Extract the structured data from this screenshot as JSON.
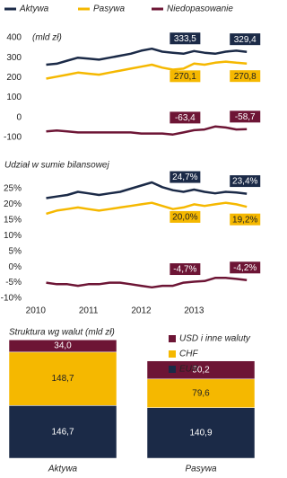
{
  "chart_data": [
    {
      "type": "line",
      "legend": "top",
      "ylabel": "(mld zł)",
      "x": [
        2010.2,
        2010.4,
        2010.6,
        2010.8,
        2011.0,
        2011.2,
        2011.4,
        2011.6,
        2011.8,
        2012.0,
        2012.2,
        2012.4,
        2012.6,
        2012.8,
        2013.0,
        2013.2,
        2013.4,
        2013.6,
        2013.8,
        2014.0
      ],
      "xlim": [
        2009.8,
        2014.2
      ],
      "ylim": [
        -100,
        400
      ],
      "yticks": [
        -100,
        0,
        100,
        200,
        300,
        400
      ],
      "series": [
        {
          "name": "Aktywa",
          "color": "#1b2a47",
          "values": [
            265,
            270,
            285,
            300,
            295,
            290,
            300,
            310,
            320,
            335,
            345,
            330,
            325,
            320,
            333.5,
            325,
            320,
            330,
            335,
            329.4
          ],
          "value_labels": [
            null,
            null,
            null,
            null,
            null,
            null,
            null,
            null,
            null,
            null,
            null,
            null,
            null,
            null,
            "333,5",
            null,
            null,
            null,
            null,
            "329,4"
          ]
        },
        {
          "name": "Pasywa",
          "color": "#f5b800",
          "values": [
            195,
            205,
            215,
            225,
            220,
            215,
            225,
            235,
            245,
            255,
            265,
            250,
            240,
            245,
            270.1,
            265,
            275,
            280,
            275,
            270.8
          ],
          "value_labels": [
            null,
            null,
            null,
            null,
            null,
            null,
            null,
            null,
            null,
            null,
            null,
            null,
            null,
            null,
            "270,1",
            null,
            null,
            null,
            null,
            "270,8"
          ]
        },
        {
          "name": "Niedopasowanie",
          "color": "#6d1535",
          "values": [
            -70,
            -65,
            -70,
            -75,
            -75,
            -75,
            -75,
            -75,
            -75,
            -80,
            -80,
            -80,
            -85,
            -75,
            -63.4,
            -60,
            -45,
            -50,
            -60,
            -58.7
          ],
          "value_labels": [
            null,
            null,
            null,
            null,
            null,
            null,
            null,
            null,
            null,
            null,
            null,
            null,
            null,
            null,
            "-63,4",
            null,
            null,
            null,
            null,
            "-58,7"
          ]
        }
      ]
    },
    {
      "type": "line",
      "title": "Udział w sumie bilansowej",
      "x": [
        2010.2,
        2010.4,
        2010.6,
        2010.8,
        2011.0,
        2011.2,
        2011.4,
        2011.6,
        2011.8,
        2012.0,
        2012.2,
        2012.4,
        2012.6,
        2012.8,
        2013.0,
        2013.2,
        2013.4,
        2013.6,
        2013.8,
        2014.0
      ],
      "xlim": [
        2009.8,
        2014.2
      ],
      "xticks": [
        2010,
        2011,
        2012,
        2013
      ],
      "ylim": [
        -10,
        25
      ],
      "yticks": [
        {
          "value": -10,
          "label": "-10%"
        },
        {
          "value": -5,
          "label": "-5%"
        },
        {
          "value": 0,
          "label": "0%"
        },
        {
          "value": 5,
          "label": "5%"
        },
        {
          "value": 10,
          "label": "10%"
        },
        {
          "value": 15,
          "label": "15%"
        },
        {
          "value": 20,
          "label": "20%"
        },
        {
          "value": 25,
          "label": "25%"
        }
      ],
      "series": [
        {
          "color": "#1b2a47",
          "values": [
            22,
            22.5,
            23,
            24,
            23.5,
            23,
            23.5,
            24,
            25,
            26,
            27,
            25.5,
            24.5,
            24,
            24.7,
            24,
            23.5,
            24,
            23.8,
            23.4
          ],
          "value_labels": [
            null,
            null,
            null,
            null,
            null,
            null,
            null,
            null,
            null,
            null,
            null,
            null,
            null,
            null,
            "24,7%",
            null,
            null,
            null,
            null,
            "23,4%"
          ]
        },
        {
          "color": "#f5b800",
          "values": [
            17,
            18,
            18.5,
            19,
            18.5,
            18,
            18.5,
            19,
            19.5,
            20,
            20.5,
            19.5,
            18.5,
            19,
            20.0,
            19.5,
            20,
            20.5,
            20,
            19.2
          ],
          "value_labels": [
            null,
            null,
            null,
            null,
            null,
            null,
            null,
            null,
            null,
            null,
            null,
            null,
            null,
            null,
            "20,0%",
            null,
            null,
            null,
            null,
            "19,2%"
          ]
        },
        {
          "color": "#6d1535",
          "values": [
            -5,
            -5.5,
            -5.5,
            -6,
            -5.5,
            -5.5,
            -5,
            -5,
            -5.5,
            -6,
            -6.5,
            -6,
            -6,
            -5,
            -4.7,
            -4.5,
            -3.5,
            -3.5,
            -3.8,
            -4.2
          ],
          "value_labels": [
            null,
            null,
            null,
            null,
            null,
            null,
            null,
            null,
            null,
            null,
            null,
            null,
            null,
            null,
            "-4,7%",
            null,
            null,
            null,
            null,
            "-4,2%"
          ]
        }
      ]
    },
    {
      "type": "bar",
      "stacked": true,
      "title": "Struktura wg walut (mld zł)",
      "categories": [
        "Aktywa",
        "Pasywa"
      ],
      "series": [
        {
          "name": "EUR",
          "color": "#1b2a47",
          "values": [
            146.7,
            140.9
          ],
          "value_labels": [
            "146,7",
            "140,9"
          ]
        },
        {
          "name": "CHF",
          "color": "#f5b800",
          "values": [
            148.7,
            79.6
          ],
          "value_labels": [
            "148,7",
            "79,6"
          ]
        },
        {
          "name": "USD i inne waluty",
          "color": "#6d1535",
          "values": [
            34.0,
            50.2
          ],
          "value_labels": [
            "34,0",
            "50,2"
          ]
        }
      ]
    }
  ]
}
